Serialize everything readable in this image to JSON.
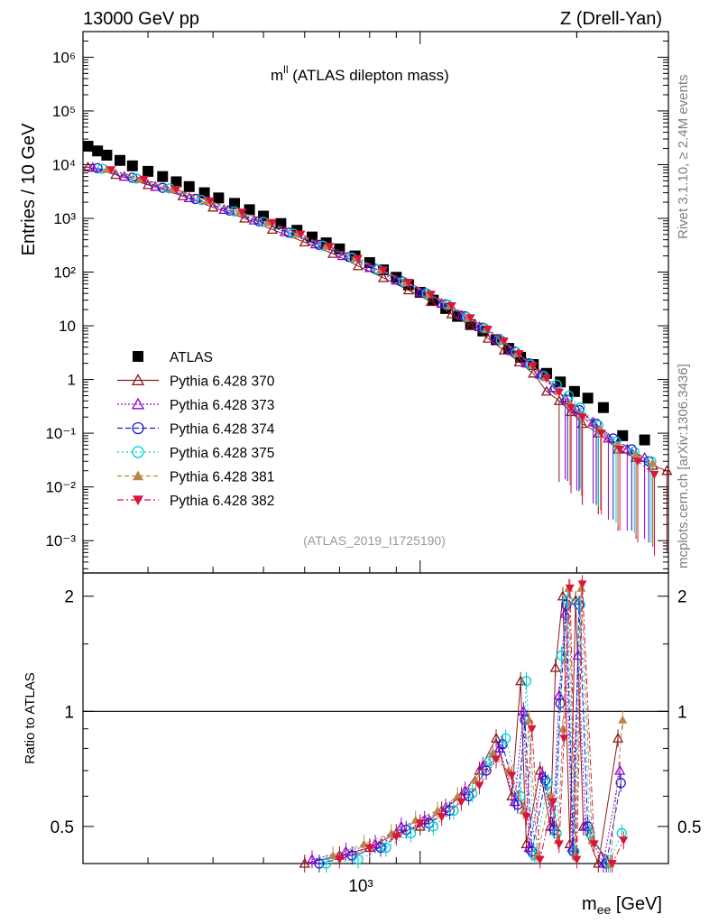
{
  "header": {
    "left": "13000 GeV pp",
    "right": "Z (Drell-Yan)"
  },
  "side_texts": {
    "rivet": "Rivet 3.1.10, ≥ 2.4M events",
    "mcplots": "mcplots.cern.ch [arXiv:1306.3436]"
  },
  "chart_data": [
    {
      "type": "scatter",
      "title_main": "m",
      "title_sup": "ll",
      "title_rest": " (ATLAS dilepton mass)",
      "ylabel": "Entries / 10 GeV",
      "xlabel_main": "m",
      "xlabel_sub": "ee",
      "xlabel_rest": " [GeV]",
      "xscale": "log",
      "yscale": "log",
      "xlim": [
        225,
        3000
      ],
      "ylim": [
        0.00025,
        3000000
      ],
      "x_tick_labels": [
        "10³"
      ],
      "y_tick_labels": [
        "10⁶",
        "10⁵",
        "10⁴",
        "10³",
        "10²",
        "10",
        "1",
        "10⁻¹",
        "10⁻²",
        "10⁻³"
      ],
      "watermark": "(ATLAS_2019_I1725190)",
      "legend_position": "lower-left",
      "series": [
        {
          "name": "ATLAS",
          "color": "#000000",
          "marker": "square-filled",
          "x": [
            230,
            240,
            250,
            265,
            280,
            300,
            320,
            340,
            360,
            385,
            410,
            440,
            470,
            500,
            540,
            580,
            620,
            660,
            700,
            750,
            800,
            850,
            900,
            950,
            1000,
            1060,
            1120,
            1180,
            1250,
            1320,
            1400,
            1480,
            1560,
            1650,
            1750,
            1860,
            1980,
            2100,
            2250,
            2450,
            2700
          ],
          "y": [
            22000,
            18000,
            15000,
            12000,
            9500,
            7500,
            6000,
            4800,
            3900,
            3000,
            2400,
            1900,
            1450,
            1100,
            800,
            600,
            450,
            350,
            270,
            200,
            150,
            110,
            80,
            58,
            42,
            30,
            21,
            15,
            10.5,
            8,
            5.5,
            3.8,
            2.6,
            1.9,
            1.3,
            0.9,
            0.6,
            0.45,
            0.3,
            0.09,
            0.075
          ]
        },
        {
          "name": "Pythia 6.428 370",
          "color": "#8b1a1a",
          "marker": "triangle-up-open",
          "x": [
            230,
            260,
            300,
            350,
            400,
            460,
            520,
            600,
            680,
            760,
            850,
            950,
            1050,
            1150,
            1250,
            1350,
            1450,
            1550,
            1650,
            1750,
            1850,
            1950,
            2050,
            2200,
            2400,
            2600,
            2800,
            2980
          ],
          "y": [
            9000,
            6500,
            4200,
            2600,
            1600,
            1000,
            620,
            360,
            220,
            130,
            78,
            46,
            28,
            16.5,
            10,
            5.8,
            3.5,
            2.1,
            1.3,
            0.6,
            0.4,
            0.25,
            0.15,
            0.1,
            0.05,
            0.035,
            0.025,
            0.02
          ]
        },
        {
          "name": "Pythia 6.428 373",
          "color": "#9400d3",
          "marker": "triangle-up-open",
          "x": [
            235,
            270,
            310,
            360,
            420,
            480,
            550,
            630,
            710,
            800,
            900,
            1000,
            1100,
            1200,
            1300,
            1400,
            1500,
            1600,
            1700,
            1800,
            1900,
            2000,
            2150,
            2300,
            2500,
            2700
          ],
          "y": [
            8800,
            6000,
            3900,
            2400,
            1450,
            920,
            560,
            330,
            200,
            120,
            70,
            42,
            26,
            15.5,
            9.5,
            5.6,
            3.4,
            2.0,
            1.25,
            0.7,
            0.45,
            0.28,
            0.16,
            0.08,
            0.05,
            0.035
          ]
        },
        {
          "name": "Pythia 6.428 374",
          "color": "#1a1acd",
          "marker": "circle-open",
          "x": [
            240,
            280,
            320,
            370,
            430,
            490,
            560,
            640,
            730,
            820,
            920,
            1020,
            1120,
            1220,
            1320,
            1420,
            1520,
            1620,
            1720,
            1820,
            1920,
            2020,
            2180,
            2350,
            2550,
            2750
          ],
          "y": [
            8600,
            5700,
            3700,
            2300,
            1400,
            880,
            540,
            320,
            190,
            115,
            68,
            41,
            25,
            15,
            9.2,
            5.5,
            3.3,
            2.0,
            1.2,
            0.68,
            0.42,
            0.27,
            0.15,
            0.08,
            0.05,
            0.03
          ]
        },
        {
          "name": "Pythia 6.428 375",
          "color": "#00cdcd",
          "marker": "circle-open",
          "x": [
            245,
            285,
            330,
            380,
            440,
            500,
            570,
            650,
            740,
            830,
            930,
            1030,
            1130,
            1230,
            1330,
            1430,
            1530,
            1630,
            1730,
            1830,
            1930,
            2030,
            2200,
            2380,
            2580,
            2780
          ],
          "y": [
            8400,
            5500,
            3600,
            2200,
            1350,
            860,
            520,
            310,
            185,
            112,
            66,
            40,
            24.5,
            14.5,
            9,
            5.4,
            3.2,
            1.9,
            1.15,
            0.8,
            0.5,
            0.3,
            0.14,
            0.07,
            0.045,
            0.03
          ]
        },
        {
          "name": "Pythia 6.428 381",
          "color": "#b8864b",
          "marker": "triangle-up-filled",
          "x": [
            250,
            290,
            335,
            390,
            450,
            510,
            580,
            660,
            750,
            840,
            940,
            1040,
            1140,
            1240,
            1340,
            1440,
            1540,
            1640,
            1740,
            1840,
            1940,
            2040,
            2220,
            2400,
            2600,
            2800
          ],
          "y": [
            8200,
            5400,
            3500,
            2150,
            1320,
            840,
            510,
            305,
            180,
            110,
            65,
            39,
            24,
            14.2,
            8.8,
            5.3,
            3.1,
            1.85,
            1.1,
            0.6,
            0.35,
            0.22,
            0.12,
            0.06,
            0.04,
            0.028
          ]
        },
        {
          "name": "Pythia 6.428 382",
          "color": "#dc143c",
          "marker": "triangle-down-filled",
          "x": [
            255,
            295,
            340,
            395,
            455,
            520,
            590,
            670,
            760,
            850,
            950,
            1050,
            1150,
            1250,
            1350,
            1450,
            1550,
            1650,
            1750,
            1850,
            1950,
            2050,
            2230,
            2420,
            2620,
            2820
          ],
          "y": [
            8000,
            5300,
            3450,
            2100,
            1300,
            830,
            505,
            300,
            178,
            108,
            64,
            38.5,
            23.5,
            14,
            8.6,
            5.2,
            3.0,
            1.8,
            1.05,
            0.58,
            0.3,
            0.2,
            0.1,
            0.05,
            0.03,
            0.017
          ]
        }
      ]
    },
    {
      "type": "scatter",
      "ylabel": "Ratio to ATLAS",
      "xscale": "log",
      "yscale": "log",
      "xlim": [
        225,
        3000
      ],
      "ylim": [
        0.4,
        2.3
      ],
      "y_tick_labels": [
        "2",
        "1",
        "0.5"
      ],
      "reference_line": 1,
      "series": [
        {
          "name": "Pythia 6.428 370",
          "x": [
            600,
            700,
            800,
            900,
            1000,
            1100,
            1200,
            1300,
            1400,
            1500,
            1560,
            1600,
            1700,
            1780,
            1820,
            1880,
            1940,
            1990,
            2060,
            2200,
            2400
          ],
          "y": [
            0.4,
            0.42,
            0.44,
            0.48,
            0.5,
            0.55,
            0.6,
            0.7,
            0.85,
            0.6,
            1.2,
            0.45,
            0.7,
            0.5,
            1.3,
            2.0,
            0.45,
            1.95,
            0.5,
            0.4,
            0.85
          ]
        },
        {
          "name": "Pythia 6.428 373",
          "x": [
            620,
            720,
            820,
            920,
            1020,
            1120,
            1220,
            1320,
            1420,
            1520,
            1580,
            1620,
            1720,
            1800,
            1850,
            1900,
            1960,
            2010,
            2080,
            2250,
            2420
          ],
          "y": [
            0.41,
            0.43,
            0.45,
            0.5,
            0.52,
            0.56,
            0.62,
            0.72,
            0.8,
            0.58,
            1.0,
            0.44,
            0.68,
            0.5,
            1.1,
            1.8,
            0.44,
            1.4,
            0.5,
            0.4,
            0.7
          ]
        },
        {
          "name": "Pythia 6.428 374",
          "x": [
            640,
            740,
            840,
            940,
            1040,
            1140,
            1240,
            1340,
            1440,
            1540,
            1590,
            1640,
            1740,
            1810,
            1860,
            1910,
            1970,
            2020,
            2100,
            2280,
            2430
          ],
          "y": [
            0.4,
            0.42,
            0.44,
            0.49,
            0.51,
            0.55,
            0.6,
            0.7,
            0.82,
            0.57,
            0.95,
            0.43,
            0.66,
            0.49,
            1.05,
            1.9,
            0.43,
            1.9,
            0.5,
            0.4,
            0.65
          ]
        },
        {
          "name": "Pythia 6.428 375",
          "x": [
            660,
            760,
            860,
            960,
            1060,
            1160,
            1260,
            1360,
            1460,
            1560,
            1600,
            1660,
            1760,
            1830,
            1870,
            1920,
            1980,
            2030,
            2120,
            2300,
            2440
          ],
          "y": [
            0.4,
            0.41,
            0.44,
            0.48,
            0.5,
            0.55,
            0.61,
            0.74,
            0.85,
            0.6,
            1.2,
            0.42,
            0.65,
            0.48,
            1.4,
            1.95,
            0.43,
            1.9,
            0.48,
            0.4,
            0.48
          ]
        },
        {
          "name": "Pythia 6.428 381",
          "x": [
            680,
            780,
            880,
            980,
            1080,
            1180,
            1280,
            1380,
            1480,
            1580,
            1620,
            1680,
            1780,
            1840,
            1880,
            1930,
            1990,
            2040,
            2140,
            2320,
            2450
          ],
          "y": [
            0.42,
            0.45,
            0.48,
            0.52,
            0.55,
            0.6,
            0.66,
            0.78,
            0.7,
            0.55,
            0.95,
            0.42,
            0.6,
            0.46,
            0.9,
            2.1,
            0.42,
            2.1,
            0.46,
            0.4,
            0.95
          ]
        },
        {
          "name": "Pythia 6.428 382",
          "x": [
            700,
            800,
            900,
            1000,
            1100,
            1200,
            1300,
            1400,
            1500,
            1600,
            1640,
            1700,
            1800,
            1850,
            1890,
            1940,
            2000,
            2050,
            2160,
            2340,
            2460
          ],
          "y": [
            0.41,
            0.44,
            0.47,
            0.51,
            0.53,
            0.58,
            0.64,
            0.75,
            0.68,
            0.53,
            0.9,
            0.41,
            0.58,
            0.45,
            0.85,
            2.1,
            0.41,
            2.15,
            0.45,
            0.4,
            0.46
          ]
        }
      ]
    }
  ]
}
